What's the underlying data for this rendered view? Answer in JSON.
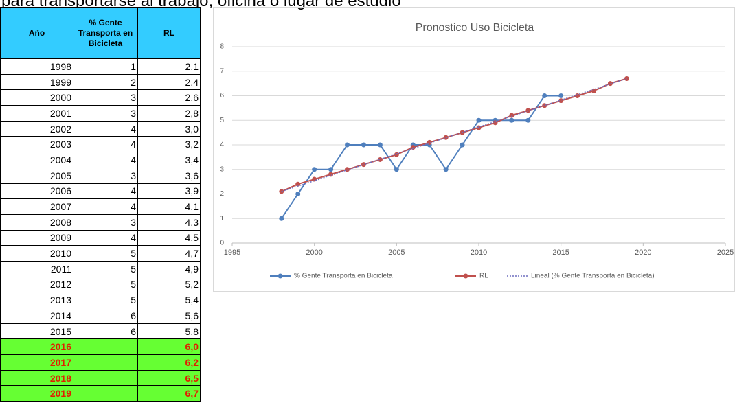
{
  "heading": "para transportarse al trabajo, oficina o lugar de estudio",
  "table": {
    "columns": [
      "Año",
      "% Gente Transporta en Bicicleta",
      "RL"
    ],
    "rows": [
      [
        1998,
        1,
        "2,1"
      ],
      [
        1999,
        2,
        "2,4"
      ],
      [
        2000,
        3,
        "2,6"
      ],
      [
        2001,
        3,
        "2,8"
      ],
      [
        2002,
        4,
        "3,0"
      ],
      [
        2003,
        4,
        "3,2"
      ],
      [
        2004,
        4,
        "3,4"
      ],
      [
        2005,
        3,
        "3,6"
      ],
      [
        2006,
        4,
        "3,9"
      ],
      [
        2007,
        4,
        "4,1"
      ],
      [
        2008,
        3,
        "4,3"
      ],
      [
        2009,
        4,
        "4,5"
      ],
      [
        2010,
        5,
        "4,7"
      ],
      [
        2011,
        5,
        "4,9"
      ],
      [
        2012,
        5,
        "5,2"
      ],
      [
        2013,
        5,
        "5,4"
      ],
      [
        2014,
        6,
        "5,6"
      ],
      [
        2015,
        6,
        "5,8"
      ],
      [
        2016,
        null,
        "6,0"
      ],
      [
        2017,
        null,
        "6,2"
      ],
      [
        2018,
        null,
        "6,5"
      ],
      [
        2019,
        null,
        "6,7"
      ]
    ],
    "forecast_rows": [
      18,
      19,
      20,
      21
    ]
  },
  "chart_data": {
    "type": "line",
    "title": "Pronostico Uso Bicicleta",
    "xlim": [
      1995,
      2025
    ],
    "xticks": [
      1995,
      2000,
      2005,
      2010,
      2015,
      2020,
      2025
    ],
    "ylim": [
      0,
      8
    ],
    "yticks": [
      0,
      1,
      2,
      3,
      4,
      5,
      6,
      7,
      8
    ],
    "grid": true,
    "legend": "bottom",
    "series": [
      {
        "name": "% Gente Transporta en Bicicleta",
        "color": "#4f7fbd",
        "marker": true,
        "x": [
          1998,
          1999,
          2000,
          2001,
          2002,
          2003,
          2004,
          2005,
          2006,
          2007,
          2008,
          2009,
          2010,
          2011,
          2012,
          2013,
          2014,
          2015
        ],
        "values": [
          1,
          2,
          3,
          3,
          4,
          4,
          4,
          3,
          4,
          4,
          3,
          4,
          5,
          5,
          5,
          5,
          6,
          6
        ]
      },
      {
        "name": "RL",
        "color": "#c0504d",
        "marker": true,
        "x": [
          1998,
          1999,
          2000,
          2001,
          2002,
          2003,
          2004,
          2005,
          2006,
          2007,
          2008,
          2009,
          2010,
          2011,
          2012,
          2013,
          2014,
          2015,
          2016,
          2017,
          2018,
          2019
        ],
        "values": [
          2.1,
          2.4,
          2.6,
          2.8,
          3.0,
          3.2,
          3.4,
          3.6,
          3.9,
          4.1,
          4.3,
          4.5,
          4.7,
          4.9,
          5.2,
          5.4,
          5.6,
          5.8,
          6.0,
          6.2,
          6.5,
          6.7
        ]
      },
      {
        "name": "Lineal (% Gente Transporta en Bicicleta)",
        "color": "#6f6fbf",
        "marker": false,
        "dash": true,
        "x": [
          1998,
          2019
        ],
        "values": [
          2.1,
          6.7
        ]
      }
    ]
  }
}
